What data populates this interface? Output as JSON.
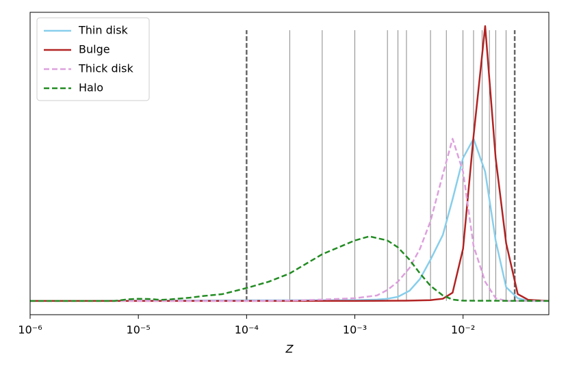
{
  "chart_data": {
    "type": "line",
    "xlabel": "Z",
    "xscale": "log",
    "xlim": [
      1e-06,
      0.062
    ],
    "ylim": [
      -0.05,
      1.05
    ],
    "xticks": [
      {
        "value": 1e-06,
        "label": "10⁻⁶"
      },
      {
        "value": 1e-05,
        "label": "10⁻⁵"
      },
      {
        "value": 0.0001,
        "label": "10⁻⁴"
      },
      {
        "value": 0.001,
        "label": "10⁻³"
      },
      {
        "value": 0.01,
        "label": "10⁻²"
      }
    ],
    "legend": "upper left",
    "vlines": [
      0.00025,
      0.0005,
      0.001,
      0.002,
      0.0025,
      0.003,
      0.005,
      0.007,
      0.01,
      0.0125,
      0.015,
      0.0175,
      0.02,
      0.025
    ],
    "vlines_dashed": [
      0.0001,
      0.03
    ],
    "vlines_ylim": [
      0,
      0.985
    ],
    "series": [
      {
        "name": "Thin disk",
        "color": "#87ceeb",
        "linestyle": "solid",
        "x": [
          1e-06,
          0.001,
          0.0016,
          0.002,
          0.0025,
          0.0032,
          0.004,
          0.005,
          0.0065,
          0.008,
          0.01,
          0.0125,
          0.016,
          0.02,
          0.025,
          0.032,
          0.04,
          0.062
        ],
        "values": [
          0,
          0.003,
          0.005,
          0.008,
          0.015,
          0.037,
          0.08,
          0.15,
          0.24,
          0.37,
          0.52,
          0.59,
          0.47,
          0.22,
          0.05,
          0.01,
          0,
          0
        ]
      },
      {
        "name": "Bulge",
        "color": "#b22222",
        "linestyle": "solid",
        "x": [
          1e-06,
          0.001,
          0.003,
          0.005,
          0.0065,
          0.008,
          0.01,
          0.0125,
          0.016,
          0.02,
          0.025,
          0.032,
          0.04,
          0.062
        ],
        "values": [
          0,
          0,
          0.001,
          0.003,
          0.008,
          0.03,
          0.19,
          0.6,
          1.0,
          0.52,
          0.21,
          0.025,
          0.004,
          0
        ]
      },
      {
        "name": "Thick disk",
        "color": "#dda0dd",
        "linestyle": "dashed",
        "x": [
          1e-06,
          0.0001,
          0.0003,
          0.0005,
          0.001,
          0.0016,
          0.002,
          0.0025,
          0.0032,
          0.004,
          0.005,
          0.0065,
          0.008,
          0.01,
          0.0125,
          0.016,
          0.02,
          0.025,
          0.062
        ],
        "values": [
          0,
          0,
          0.002,
          0.005,
          0.01,
          0.02,
          0.04,
          0.07,
          0.12,
          0.19,
          0.29,
          0.46,
          0.59,
          0.47,
          0.2,
          0.07,
          0.01,
          0,
          0
        ]
      },
      {
        "name": "Halo",
        "color": "#228b22",
        "linestyle": "dashed",
        "x": [
          1e-06,
          6e-06,
          8e-06,
          1e-05,
          1.3e-05,
          1.6e-05,
          2e-05,
          3e-05,
          4e-05,
          6e-05,
          0.0001,
          0.00016,
          0.00025,
          0.0005,
          0.001,
          0.00136,
          0.002,
          0.0025,
          0.0032,
          0.004,
          0.005,
          0.0065,
          0.008,
          0.01,
          0.062
        ],
        "values": [
          0,
          0,
          0.006,
          0.008,
          0.007,
          0.004,
          0.006,
          0.012,
          0.018,
          0.025,
          0.047,
          0.07,
          0.1,
          0.17,
          0.22,
          0.235,
          0.22,
          0.195,
          0.15,
          0.1,
          0.055,
          0.02,
          0.005,
          0.001,
          0
        ]
      }
    ]
  }
}
